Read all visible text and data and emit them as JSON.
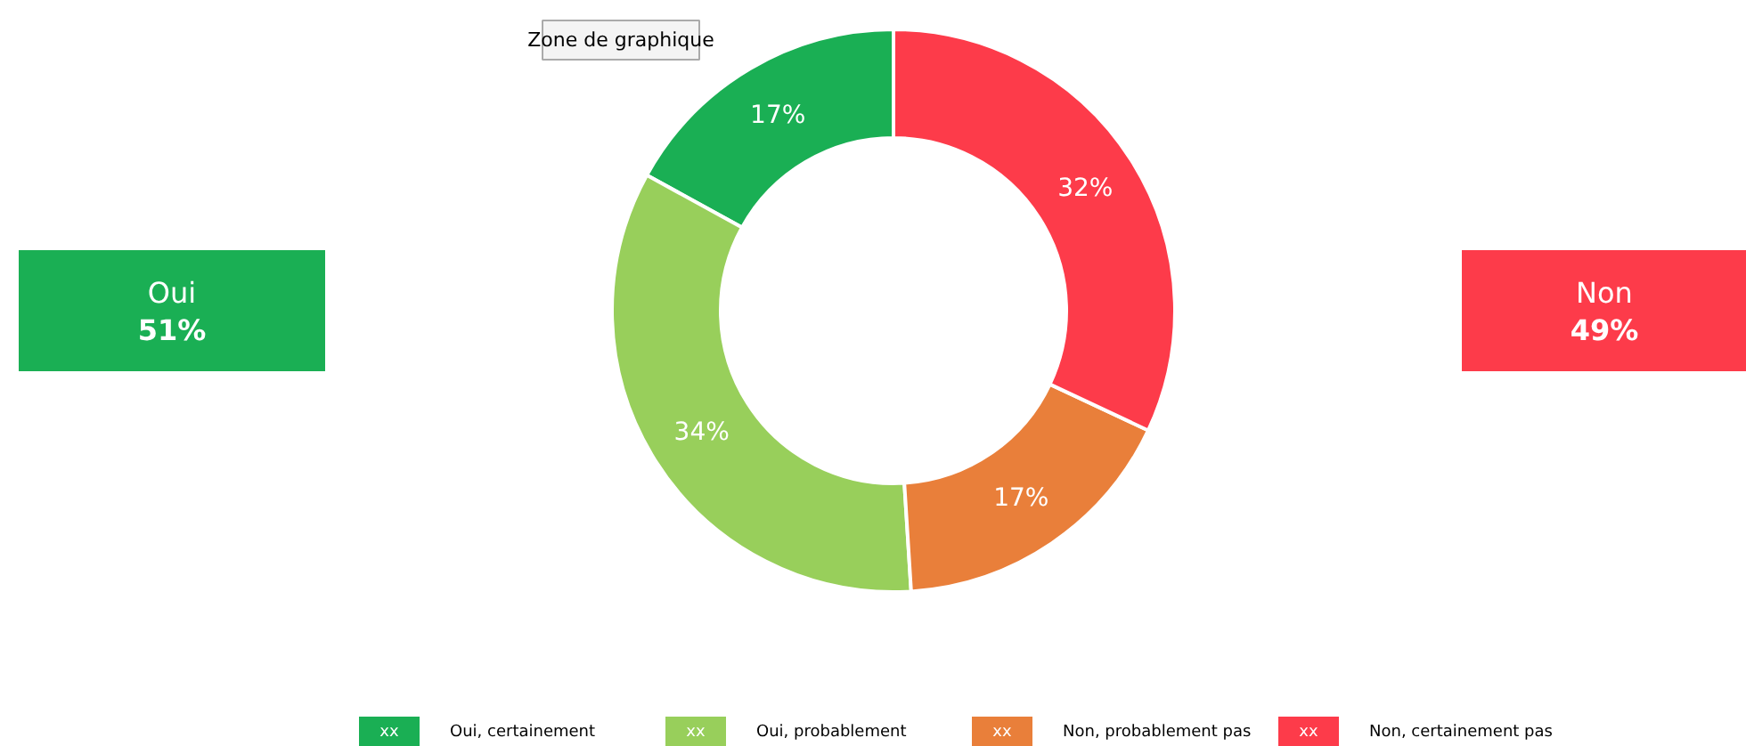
{
  "chart_data": {
    "type": "donut",
    "categories": [
      "Oui, certainement",
      "Oui, probablement",
      "Non, probablement pas",
      "Non, certainement pas"
    ],
    "values": [
      17,
      34,
      17,
      32
    ],
    "colors": [
      "#1aaf54",
      "#98cf5b",
      "#e97f3a",
      "#fd3b4a"
    ],
    "value_labels": [
      "17%",
      "34%",
      "17%",
      "32%"
    ],
    "legend": "bottom",
    "annotations": [
      "Zone de graphique",
      "Oui",
      "51%",
      "Non",
      "49%",
      "xx",
      "xx",
      "xx",
      "xx"
    ]
  }
}
